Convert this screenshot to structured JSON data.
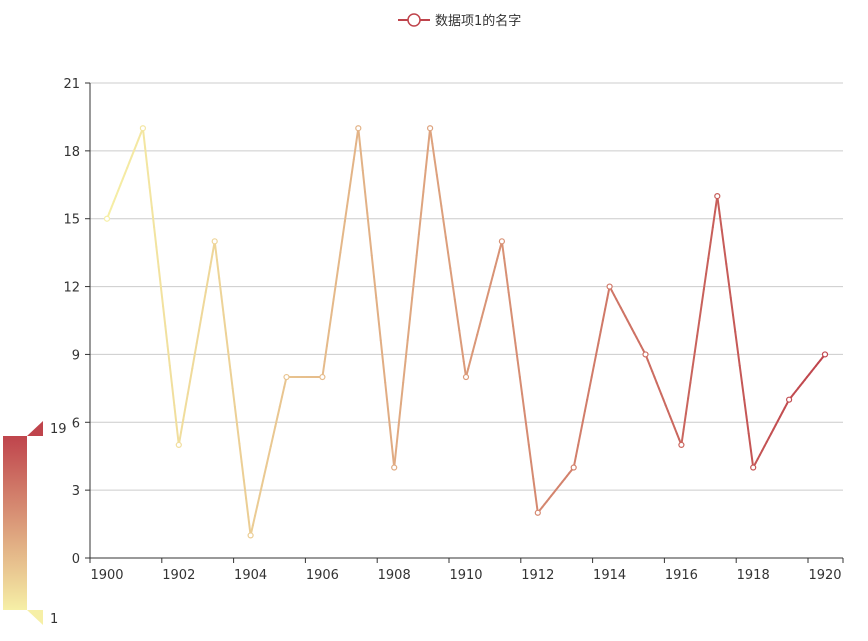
{
  "chart_data": {
    "type": "line",
    "legend": {
      "position": "top-center",
      "items": [
        "数据项1的名字"
      ]
    },
    "x": [
      1900,
      1901,
      1902,
      1903,
      1904,
      1905,
      1906,
      1907,
      1908,
      1909,
      1910,
      1911,
      1912,
      1913,
      1914,
      1915,
      1916,
      1917,
      1918,
      1919,
      1920
    ],
    "xticks": [
      "1900",
      "1902",
      "1904",
      "1906",
      "1908",
      "1910",
      "1912",
      "1914",
      "1916",
      "1918",
      "1920"
    ],
    "series": [
      {
        "name": "数据项1的名字",
        "values": [
          15,
          19,
          5,
          14,
          1,
          8,
          8,
          19,
          4,
          19,
          8,
          14,
          2,
          4,
          12,
          9,
          5,
          16,
          4,
          7,
          9
        ]
      }
    ],
    "ylim": [
      0,
      21
    ],
    "yticks": [
      0,
      3,
      6,
      9,
      12,
      15,
      18,
      21
    ],
    "grid": true,
    "visual_map": {
      "min": 1,
      "max": 19,
      "min_label": "1",
      "max_label": "19",
      "color_low": "#f6efa6",
      "color_high": "#bf444c"
    }
  }
}
